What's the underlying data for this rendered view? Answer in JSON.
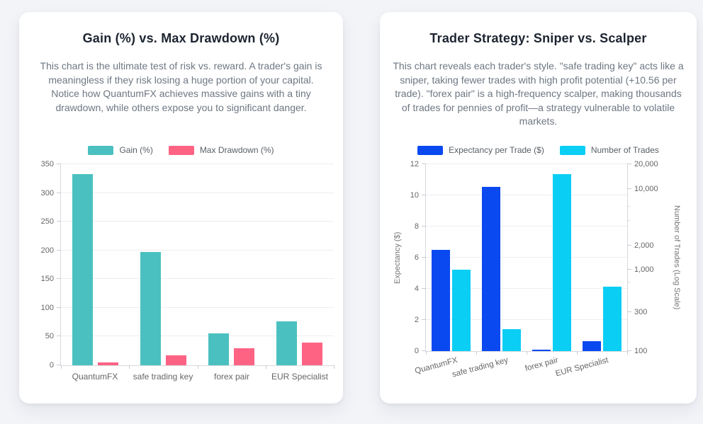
{
  "page": {
    "background_color": "#f2f4f8",
    "card_background_color": "#ffffff"
  },
  "chart_data": [
    {
      "type": "bar",
      "title": "Gain (%) vs. Max Drawdown (%)",
      "description": "This chart is the ultimate test of risk vs. reward. A trader's gain is meaningless if they risk losing a huge portion of your capital. Notice how QuantumFX achieves massive gains with a tiny drawdown, while others expose you to significant danger.",
      "categories": [
        "QuantumFX",
        "safe trading key",
        "forex pair",
        "EUR Specialist"
      ],
      "series": [
        {
          "name": "Gain (%)",
          "color": "#4bc0c0",
          "axis": "left",
          "values": [
            333,
            197,
            56,
            77
          ]
        },
        {
          "name": "Max Drawdown (%)",
          "color": "#ff6384",
          "axis": "left",
          "values": [
            4.4,
            17.5,
            30,
            39.5
          ]
        }
      ],
      "ylim": [
        0,
        350
      ],
      "yticks": [
        0,
        50,
        100,
        150,
        200,
        250,
        300,
        350
      ],
      "grid": true,
      "legend_position": "top"
    },
    {
      "type": "bar",
      "title": "Trader Strategy: Sniper vs. Scalper",
      "description": "This chart reveals each trader's style. \"safe trading key\" acts like a sniper, taking fewer trades with high profit potential (+10.56 per trade). \"forex pair\" is a high-frequency scalper, making thousands of trades for pennies of profit—a strategy vulnerable to volatile markets.",
      "categories": [
        "QuantumFX",
        "safe trading key",
        "forex pair",
        "EUR Specialist"
      ],
      "series": [
        {
          "name": "Expectancy per Trade ($)",
          "color": "#0a49f0",
          "axis": "left",
          "values": [
            6.5,
            10.56,
            0.1,
            0.65
          ]
        },
        {
          "name": "Number of Trades",
          "color": "#0bcef4",
          "axis": "right",
          "values": [
            1000,
            187,
            15000,
            620
          ]
        }
      ],
      "left_axis": {
        "label": "Expectancy ($)",
        "min": 0,
        "max": 12,
        "ticks": [
          0,
          2,
          4,
          6,
          8,
          10,
          12
        ]
      },
      "right_axis": {
        "label": "Number of Trades (Log Scale)",
        "scale": "log",
        "min": 100,
        "max": 20000,
        "ticks": [
          100,
          300,
          1000,
          2000,
          10000,
          20000
        ],
        "minor_ticks": [
          700,
          4000,
          6000
        ],
        "tick_format": "comma"
      },
      "grid": true,
      "legend_position": "top"
    }
  ]
}
